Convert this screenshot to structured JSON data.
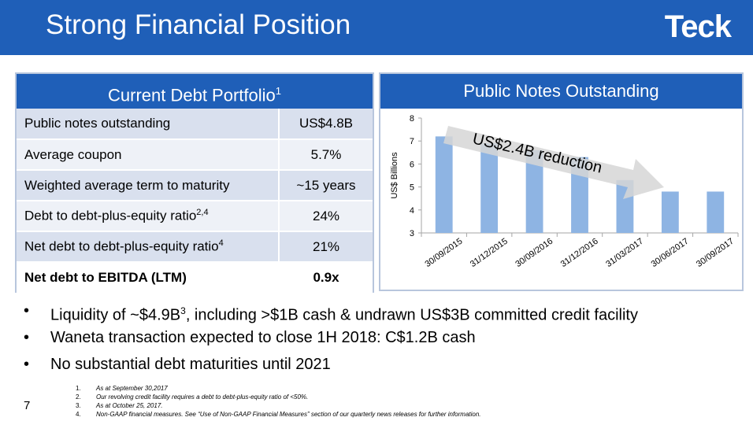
{
  "slide": {
    "title": "Strong Financial Position",
    "logo": "Teck",
    "page_number": "7"
  },
  "debt_table": {
    "header": "Current Debt Portfolio",
    "header_sup": "1",
    "rows": [
      {
        "metric": "Public notes outstanding",
        "sup": "",
        "value": "US$4.8B"
      },
      {
        "metric": "Average coupon",
        "sup": "",
        "value": "5.7%"
      },
      {
        "metric": "Weighted average term to maturity",
        "sup": "",
        "value": "~15 years"
      },
      {
        "metric": "Debt to debt-plus-equity ratio",
        "sup": "2,4",
        "value": "24%"
      },
      {
        "metric": "Net debt to debt-plus-equity ratio",
        "sup": "4",
        "value": "21%"
      },
      {
        "metric": "Net debt to EBITDA (LTM)",
        "sup": "",
        "value": "0.9x"
      }
    ]
  },
  "notes_chart": {
    "header": "Public Notes Outstanding"
  },
  "chart_data": {
    "type": "bar",
    "categories": [
      "30/09/2015",
      "31/12/2015",
      "30/09/2016",
      "31/12/2016",
      "31/03/2017",
      "30/06/2017",
      "30/09/2017"
    ],
    "values": [
      7.2,
      6.9,
      6.6,
      6.3,
      5.3,
      4.8,
      4.8
    ],
    "ylabel": "US$ Billions",
    "ylim": [
      3,
      8
    ],
    "yticks": [
      "3",
      "4",
      "5",
      "6",
      "7",
      "8"
    ],
    "annotation": "US$2.4B reduction",
    "colors": {
      "bar": "#8eb4e3",
      "arrow": "#d6d6d6"
    }
  },
  "bullets": [
    {
      "before": "Liquidity of ~$4.9B",
      "sup": "3",
      "after": ", including >$1B cash & undrawn US$3B committed credit facility"
    },
    {
      "before": "Waneta transaction expected to close 1H 2018: C$1.2B cash",
      "sup": "",
      "after": ""
    },
    {
      "before": "No substantial debt maturities until 2021",
      "sup": "",
      "after": ""
    }
  ],
  "bullet_marker": "•",
  "footnotes": [
    {
      "num": "1.",
      "text": "As at September 30,2017"
    },
    {
      "num": "2.",
      "text": "Our revolving credit facility requires a debt to debt-plus-equity ratio of <50%."
    },
    {
      "num": "3.",
      "text": "As at October 25, 2017."
    },
    {
      "num": "4.",
      "text": "Non-GAAP financial measures. See “Use of Non-GAAP Financial Measures” section of our quarterly news releases for further information."
    }
  ],
  "colors": {
    "brand_blue": "#1f5fb8",
    "row_shade": "#d9e0ee"
  }
}
